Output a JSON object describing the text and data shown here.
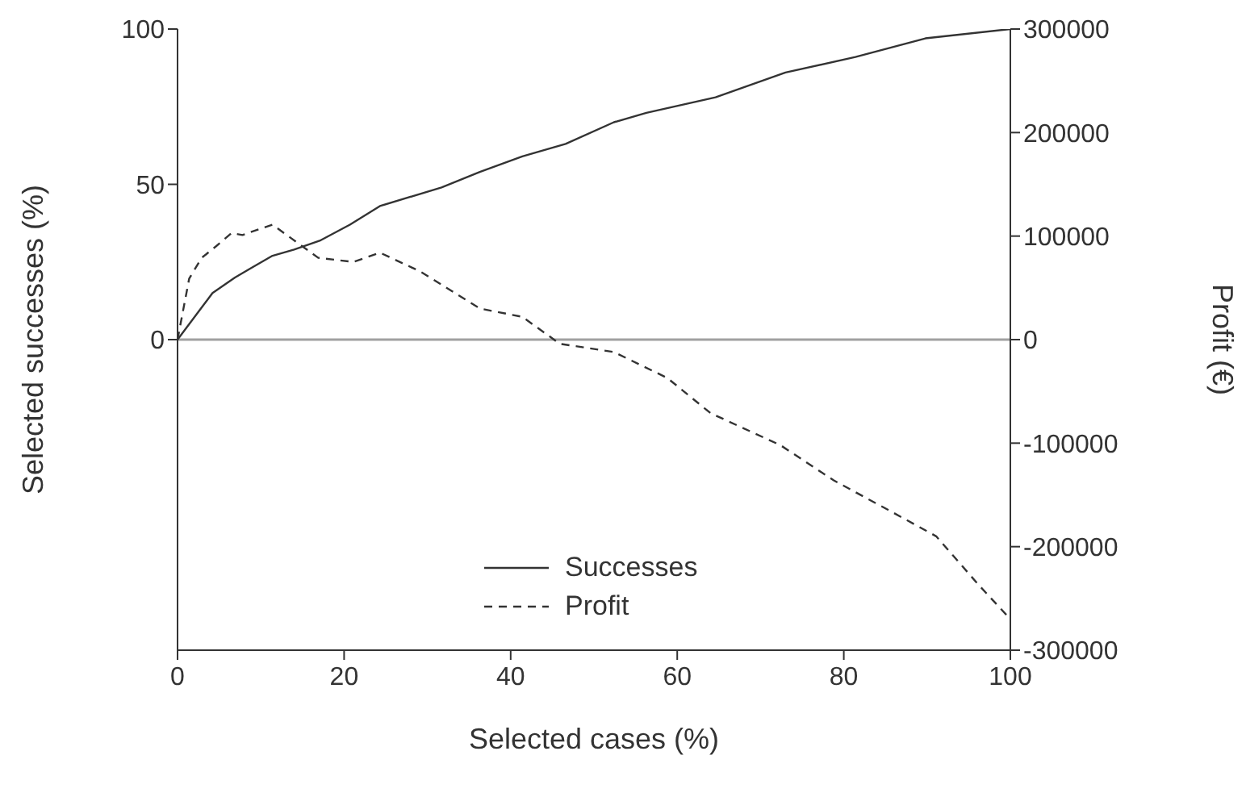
{
  "chart_data": {
    "type": "line",
    "xlabel": "Selected cases (%)",
    "ylabel": "Selected successes (%)",
    "y2label": "Profit (€)",
    "xlim": [
      0,
      100
    ],
    "xticks": [
      0,
      20,
      40,
      60,
      80,
      100
    ],
    "ylim": [
      -100,
      100
    ],
    "yticks": [
      0,
      50,
      100
    ],
    "y2lim": [
      -300000,
      300000
    ],
    "y2ticks": [
      -300000,
      -200000,
      -100000,
      0,
      100000,
      200000,
      300000
    ],
    "legend": "bottom",
    "ref_lines": [
      {
        "axis": "y",
        "value": 0,
        "color": "#a0a0a0"
      }
    ],
    "series": [
      {
        "name": "Successes",
        "color": "#333333",
        "line_style": "solid",
        "x": [
          0,
          4.2,
          6.9,
          8.8,
          11.4,
          14,
          17.2,
          20.7,
          24.3,
          31.7,
          36.3,
          41.4,
          46.6,
          52.4,
          56.3,
          64.6,
          73,
          81.4,
          89.8,
          100
        ],
        "values": [
          0,
          15,
          20,
          23,
          27,
          29,
          32,
          37,
          43,
          49,
          54,
          59,
          63,
          70,
          73,
          78,
          86,
          91,
          97,
          100
        ]
      },
      {
        "name": "Profit",
        "color": "#333333",
        "line_style": "dashed",
        "axis": "y2",
        "x": [
          0,
          1.4,
          2.9,
          4.6,
          6.5,
          7.8,
          8.8,
          11.4,
          16.9,
          21.1,
          24.3,
          29.1,
          36.3,
          41.4,
          45.9,
          52.4,
          58.8,
          64,
          72.4,
          78.8,
          85.9,
          91.1,
          96.2,
          100
        ],
        "values": [
          0,
          59000,
          79000,
          90000,
          103000,
          101000,
          104000,
          111000,
          79000,
          75000,
          84000,
          66000,
          30000,
          22000,
          -4000,
          -12000,
          -37000,
          -71000,
          -102000,
          -136000,
          -167000,
          -190000,
          -237000,
          -270000
        ]
      }
    ]
  }
}
